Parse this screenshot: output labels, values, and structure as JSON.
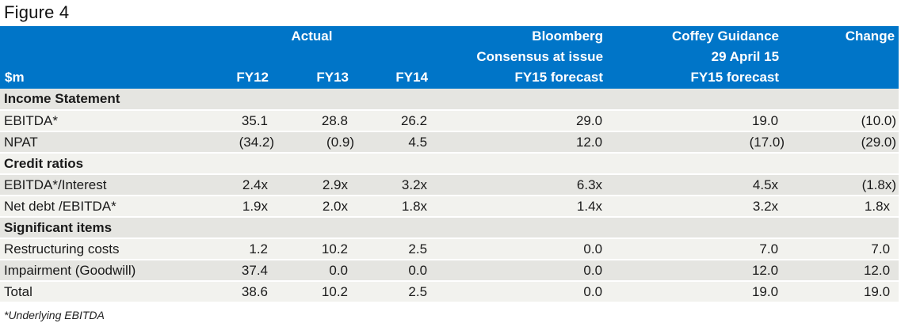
{
  "figure_title": "Figure 4",
  "footnote": "*Underlying EBITDA",
  "colors": {
    "header_blue": "#0075C8",
    "header_text": "#ffffff",
    "row_shade_dark": "#e5e5e1",
    "row_shade_light": "#f2f2ee",
    "body_text": "#1a1a1a"
  },
  "chart_data": {
    "type": "table",
    "title": "Figure 4",
    "header": {
      "unit": "$m",
      "actual_group": "Actual",
      "years": [
        "FY12",
        "FY13",
        "FY14"
      ],
      "bloomberg": [
        "Bloomberg",
        "Consensus at issue",
        "FY15 forecast"
      ],
      "coffey": [
        "Coffey Guidance",
        "29 April 15",
        "FY15 forecast"
      ],
      "change": "Change"
    },
    "rows": [
      {
        "type": "section",
        "label": "Income Statement"
      },
      {
        "type": "data",
        "label": "EBITDA*",
        "values": [
          "35.1",
          "28.8",
          "26.2",
          "29.0",
          "19.0",
          "(10.0)"
        ]
      },
      {
        "type": "data",
        "label": "NPAT",
        "values": [
          "(34.2)",
          "(0.9)",
          "4.5",
          "12.0",
          "(17.0)",
          "(29.0)"
        ]
      },
      {
        "type": "section",
        "label": "Credit ratios"
      },
      {
        "type": "data",
        "label": "EBITDA*/Interest",
        "values": [
          "2.4x",
          "2.9x",
          "3.2x",
          "6.3x",
          "4.5x",
          "(1.8x)"
        ]
      },
      {
        "type": "data",
        "label": "Net debt /EBITDA*",
        "values": [
          "1.9x",
          "2.0x",
          "1.8x",
          "1.4x",
          "3.2x",
          "1.8x"
        ]
      },
      {
        "type": "section",
        "label": "Significant items"
      },
      {
        "type": "data",
        "label": "Restructuring costs",
        "values": [
          "1.2",
          "10.2",
          "2.5",
          "0.0",
          "7.0",
          "7.0"
        ]
      },
      {
        "type": "data",
        "label": "Impairment (Goodwill)",
        "values": [
          "37.4",
          "0.0",
          "0.0",
          "0.0",
          "12.0",
          "12.0"
        ]
      },
      {
        "type": "data",
        "label": "Total",
        "values": [
          "38.6",
          "10.2",
          "2.5",
          "0.0",
          "19.0",
          "19.0"
        ]
      }
    ]
  }
}
